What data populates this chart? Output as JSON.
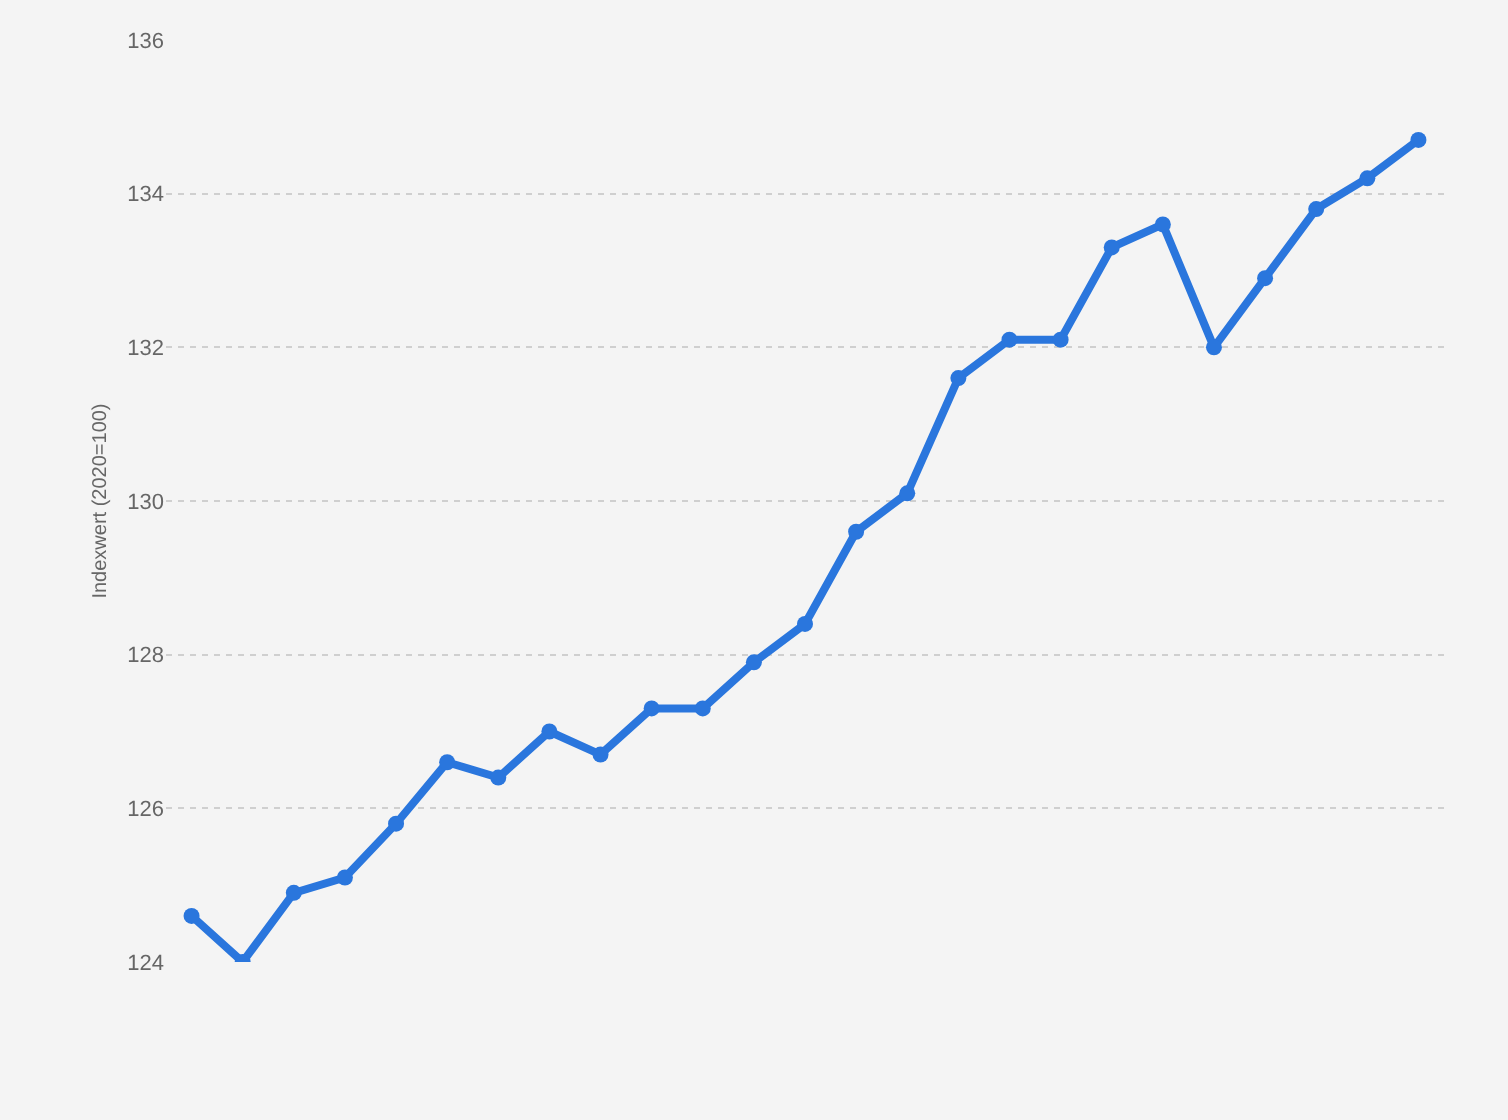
{
  "chart_data": {
    "type": "line",
    "ylabel": "Indexwert (2020=100)",
    "categories": [
      null,
      null,
      null,
      null,
      null,
      null,
      null,
      null,
      null,
      null,
      null,
      null,
      null,
      null,
      null,
      null,
      null,
      null,
      null,
      null,
      null,
      null,
      null,
      null,
      null
    ],
    "series": [
      {
        "color": "#2a76dd",
        "values": [
          124.6,
          124.0,
          124.9,
          125.1,
          125.8,
          126.6,
          126.4,
          127.0,
          126.7,
          127.3,
          127.3,
          127.9,
          128.4,
          129.6,
          130.1,
          131.6,
          132.1,
          132.1,
          133.3,
          133.6,
          132.0,
          132.9,
          133.8,
          134.2,
          134.7
        ]
      }
    ],
    "ylim": [
      124,
      136
    ],
    "yticks": [
      124,
      126,
      128,
      130,
      132,
      134,
      136
    ],
    "grid": "y",
    "marker": "circle",
    "line_style": "solid",
    "tick_labels": "y"
  }
}
